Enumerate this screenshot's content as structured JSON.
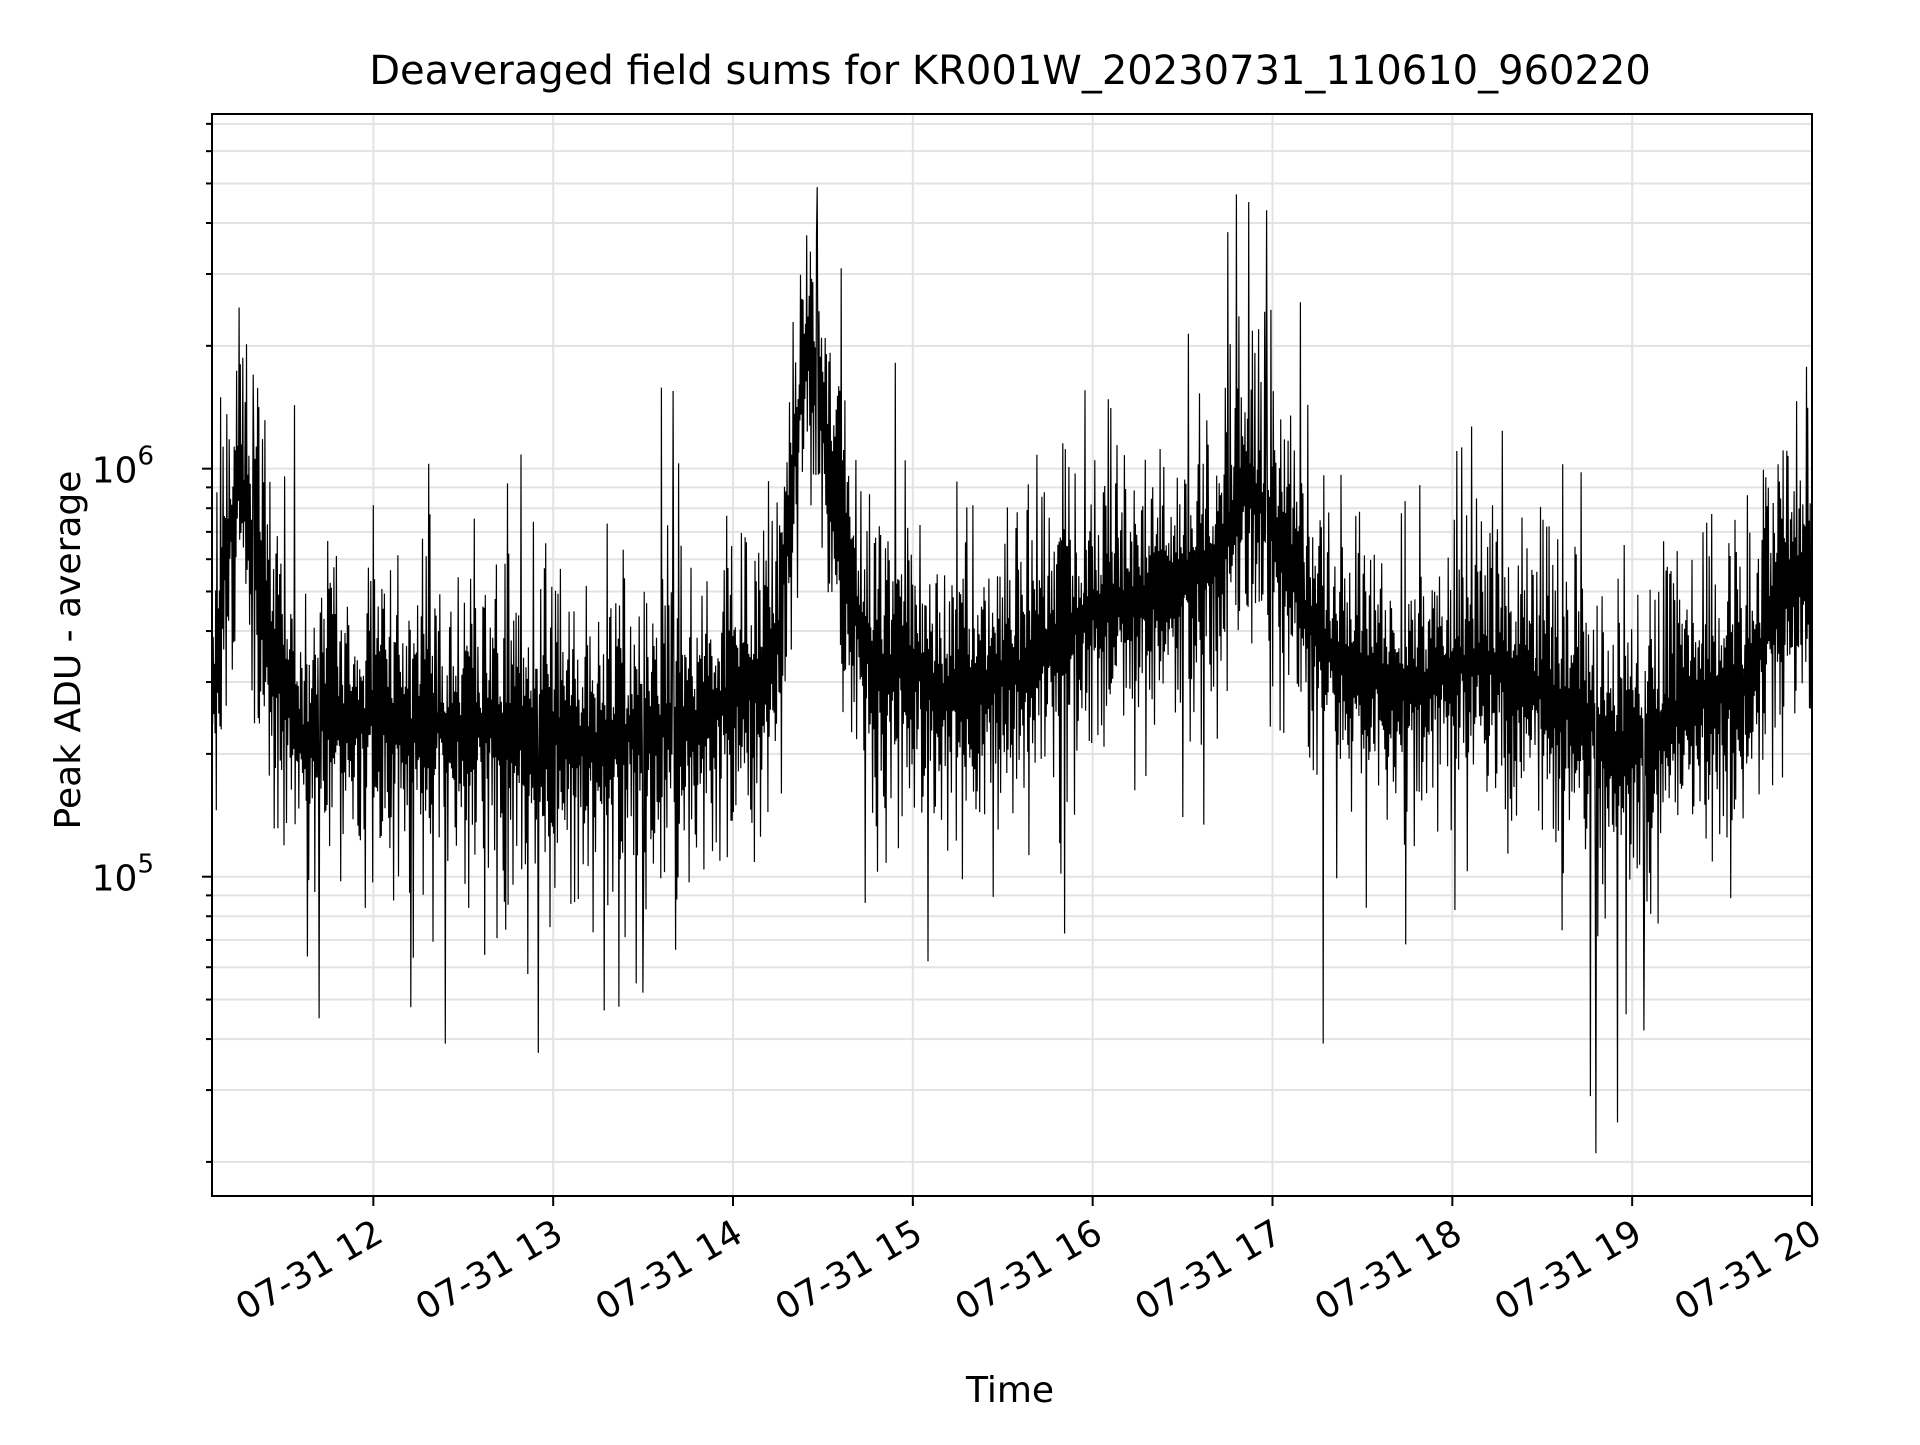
{
  "chart_data": {
    "type": "line",
    "title": "Deaveraged field sums for KR001W_20230731_110610_960220",
    "xlabel": "Time",
    "ylabel": "Peak ADU - average",
    "xlim": [
      "2023-07-31 11:06:10",
      "2023-07-31 20:00:00"
    ],
    "ylim": [
      16500,
      7400000
    ],
    "yscale": "log",
    "grid": "both",
    "colors": {
      "line": "#000000",
      "grid": "#e3e3e3",
      "background": "#ffffff"
    },
    "x_ticks": [
      {
        "t": "2023-07-31 12:00",
        "label": "07-31 12"
      },
      {
        "t": "2023-07-31 13:00",
        "label": "07-31 13"
      },
      {
        "t": "2023-07-31 14:00",
        "label": "07-31 14"
      },
      {
        "t": "2023-07-31 15:00",
        "label": "07-31 15"
      },
      {
        "t": "2023-07-31 16:00",
        "label": "07-31 16"
      },
      {
        "t": "2023-07-31 17:00",
        "label": "07-31 17"
      },
      {
        "t": "2023-07-31 18:00",
        "label": "07-31 18"
      },
      {
        "t": "2023-07-31 19:00",
        "label": "07-31 19"
      },
      {
        "t": "2023-07-31 20:00",
        "label": "07-31 20"
      }
    ],
    "y_ticks": [
      {
        "value": 100000,
        "base": "10",
        "exp": "5"
      },
      {
        "value": 1000000,
        "base": "10",
        "exp": "6"
      }
    ],
    "series": [
      {
        "x": [
          "2023-07-31 11:06",
          "2023-07-31 11:10",
          "2023-07-31 11:15",
          "2023-07-31 11:20",
          "2023-07-31 11:25",
          "2023-07-31 11:30",
          "2023-07-31 11:35",
          "2023-07-31 11:40",
          "2023-07-31 11:45",
          "2023-07-31 11:50",
          "2023-07-31 11:55",
          "2023-07-31 12:00",
          "2023-07-31 12:10",
          "2023-07-31 12:20",
          "2023-07-31 12:30",
          "2023-07-31 12:40",
          "2023-07-31 12:50",
          "2023-07-31 12:55",
          "2023-07-31 13:00",
          "2023-07-31 13:10",
          "2023-07-31 13:15",
          "2023-07-31 13:20",
          "2023-07-31 13:30",
          "2023-07-31 13:40",
          "2023-07-31 13:50",
          "2023-07-31 14:00",
          "2023-07-31 14:10",
          "2023-07-31 14:15",
          "2023-07-31 14:20",
          "2023-07-31 14:25",
          "2023-07-31 14:30",
          "2023-07-31 14:35",
          "2023-07-31 14:40",
          "2023-07-31 14:45",
          "2023-07-31 14:50",
          "2023-07-31 15:00",
          "2023-07-31 15:05",
          "2023-07-31 15:10",
          "2023-07-31 15:20",
          "2023-07-31 15:30",
          "2023-07-31 15:40",
          "2023-07-31 15:50",
          "2023-07-31 16:00",
          "2023-07-31 16:10",
          "2023-07-31 16:20",
          "2023-07-31 16:30",
          "2023-07-31 16:40",
          "2023-07-31 16:45",
          "2023-07-31 16:50",
          "2023-07-31 16:55",
          "2023-07-31 17:00",
          "2023-07-31 17:05",
          "2023-07-31 17:10",
          "2023-07-31 17:20",
          "2023-07-31 17:30",
          "2023-07-31 17:40",
          "2023-07-31 17:50",
          "2023-07-31 18:00",
          "2023-07-31 18:10",
          "2023-07-31 18:20",
          "2023-07-31 18:30",
          "2023-07-31 18:40",
          "2023-07-31 18:45",
          "2023-07-31 18:50",
          "2023-07-31 18:55",
          "2023-07-31 19:00",
          "2023-07-31 19:10",
          "2023-07-31 19:20",
          "2023-07-31 19:30",
          "2023-07-31 19:40",
          "2023-07-31 19:50",
          "2023-07-31 20:00"
        ],
        "y": [
          300000,
          600000,
          1200000,
          700000,
          400000,
          350000,
          250000,
          260000,
          300000,
          280000,
          260000,
          300000,
          250000,
          270000,
          260000,
          260000,
          270000,
          250000,
          260000,
          250000,
          230000,
          240000,
          270000,
          260000,
          270000,
          320000,
          340000,
          420000,
          1200000,
          2200000,
          1500000,
          900000,
          500000,
          400000,
          350000,
          380000,
          330000,
          320000,
          300000,
          350000,
          370000,
          450000,
          500000,
          520000,
          550000,
          600000,
          650000,
          800000,
          1000000,
          950000,
          850000,
          700000,
          500000,
          400000,
          360000,
          340000,
          330000,
          370000,
          380000,
          350000,
          320000,
          290000,
          280000,
          240000,
          220000,
          240000,
          260000,
          300000,
          320000,
          340000,
          650000,
          550000
        ],
        "low_spikes": [
          {
            "x": "2023-07-31 11:42",
            "y": 45000
          },
          {
            "x": "2023-07-31 12:24",
            "y": 39000
          },
          {
            "x": "2023-07-31 12:55",
            "y": 37000
          },
          {
            "x": "2023-07-31 13:17",
            "y": 47000
          },
          {
            "x": "2023-07-31 13:22",
            "y": 48000
          },
          {
            "x": "2023-07-31 13:30",
            "y": 52000
          },
          {
            "x": "2023-07-31 15:05",
            "y": 62000
          },
          {
            "x": "2023-07-31 17:17",
            "y": 39000
          },
          {
            "x": "2023-07-31 18:46",
            "y": 29000
          },
          {
            "x": "2023-07-31 18:48",
            "y": 21000
          },
          {
            "x": "2023-07-31 18:55",
            "y": 25000
          },
          {
            "x": "2023-07-31 18:58",
            "y": 46000
          },
          {
            "x": "2023-07-31 19:04",
            "y": 42000
          }
        ],
        "high_spikes": [
          {
            "x": "2023-07-31 11:20",
            "y": 1700000
          },
          {
            "x": "2023-07-31 13:40",
            "y": 1550000
          },
          {
            "x": "2023-07-31 14:28",
            "y": 4900000
          },
          {
            "x": "2023-07-31 14:36",
            "y": 3100000
          },
          {
            "x": "2023-07-31 16:45",
            "y": 3800000
          },
          {
            "x": "2023-07-31 16:48",
            "y": 4700000
          },
          {
            "x": "2023-07-31 16:52",
            "y": 4500000
          },
          {
            "x": "2023-07-31 16:58",
            "y": 4300000
          }
        ]
      }
    ]
  }
}
